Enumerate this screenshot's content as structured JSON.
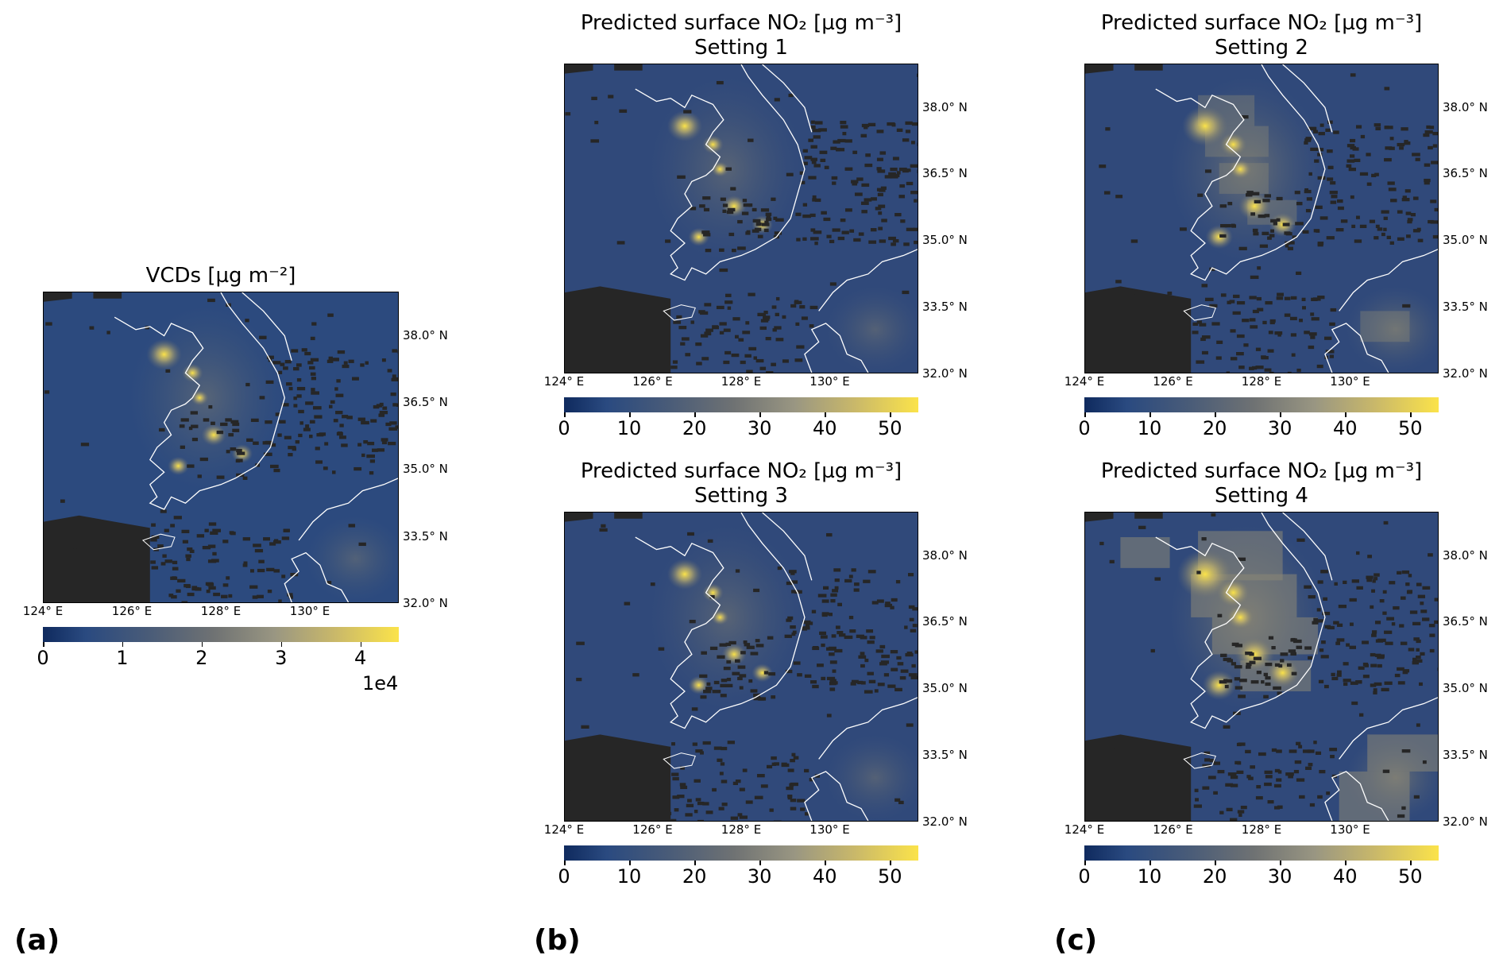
{
  "panel_labels": [
    "(a)",
    "(b)",
    "(c)"
  ],
  "lat_ticks": [
    "38.0° N",
    "36.5° N",
    "35.0° N",
    "33.5° N",
    "32.0° N"
  ],
  "lon_ticks": [
    "124° E",
    "126° E",
    "128° E",
    "130° E"
  ],
  "colorbar_colors": [
    "#0f2a5e",
    "#4a5c78",
    "#999682",
    "#fbe34a"
  ],
  "coastline_color": "#ffffff",
  "nodata_color": "#262626",
  "maps": [
    {
      "title_line1": "VCDs [µg m⁻²]",
      "title_line2": "",
      "colorbar_ticks": [
        "0",
        "1",
        "2",
        "3",
        "4"
      ],
      "colorbar_exponent": "1e4"
    },
    {
      "title_line1": "Predicted surface NO₂ [µg m⁻³]",
      "title_line2": "Setting 1",
      "colorbar_ticks": [
        "0",
        "10",
        "20",
        "30",
        "40",
        "50"
      ],
      "colorbar_exponent": ""
    },
    {
      "title_line1": "Predicted surface NO₂ [µg m⁻³]",
      "title_line2": "Setting 2",
      "colorbar_ticks": [
        "0",
        "10",
        "20",
        "30",
        "40",
        "50"
      ],
      "colorbar_exponent": ""
    },
    {
      "title_line1": "Predicted surface NO₂ [µg m⁻³]",
      "title_line2": "Setting 3",
      "colorbar_ticks": [
        "0",
        "10",
        "20",
        "30",
        "40",
        "50"
      ],
      "colorbar_exponent": ""
    },
    {
      "title_line1": "Predicted surface NO₂ [µg m⁻³]",
      "title_line2": "Setting 4",
      "colorbar_ticks": [
        "0",
        "10",
        "20",
        "30",
        "40",
        "50"
      ],
      "colorbar_exponent": ""
    }
  ]
}
